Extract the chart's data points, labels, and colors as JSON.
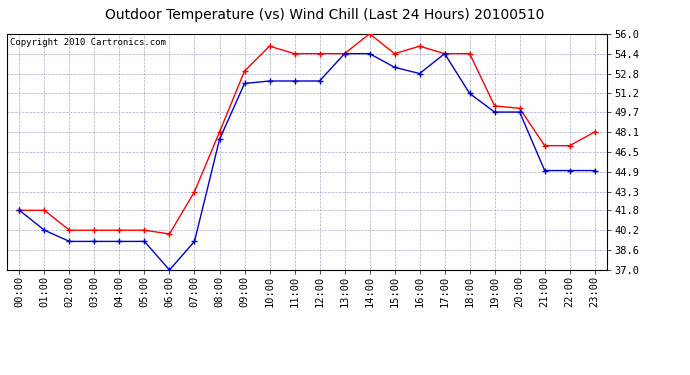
{
  "title": "Outdoor Temperature (vs) Wind Chill (Last 24 Hours) 20100510",
  "copyright": "Copyright 2010 Cartronics.com",
  "x_labels": [
    "00:00",
    "01:00",
    "02:00",
    "03:00",
    "04:00",
    "05:00",
    "06:00",
    "07:00",
    "08:00",
    "09:00",
    "10:00",
    "11:00",
    "12:00",
    "13:00",
    "14:00",
    "15:00",
    "16:00",
    "17:00",
    "18:00",
    "19:00",
    "20:00",
    "21:00",
    "22:00",
    "23:00"
  ],
  "temp_red": [
    41.8,
    41.8,
    40.2,
    40.2,
    40.2,
    40.2,
    39.9,
    43.3,
    48.1,
    53.0,
    55.0,
    54.4,
    54.4,
    54.4,
    56.0,
    54.4,
    55.0,
    54.4,
    54.4,
    50.2,
    50.0,
    47.0,
    47.0,
    48.1
  ],
  "temp_blue": [
    41.8,
    40.2,
    39.3,
    39.3,
    39.3,
    39.3,
    37.0,
    39.3,
    47.5,
    52.0,
    52.2,
    52.2,
    52.2,
    54.4,
    54.4,
    53.3,
    52.8,
    54.4,
    51.2,
    49.7,
    49.7,
    45.0,
    45.0,
    45.0
  ],
  "ylim": [
    37.0,
    56.0
  ],
  "yticks": [
    37.0,
    38.6,
    40.2,
    41.8,
    43.3,
    44.9,
    46.5,
    48.1,
    49.7,
    51.2,
    52.8,
    54.4,
    56.0
  ],
  "red_color": "#ff0000",
  "blue_color": "#0000cc",
  "grid_color": "#aaaacc",
  "bg_color": "#ffffff",
  "plot_bg_color": "#ffffff",
  "title_fontsize": 10,
  "copyright_fontsize": 6.5,
  "tick_fontsize": 7.5
}
